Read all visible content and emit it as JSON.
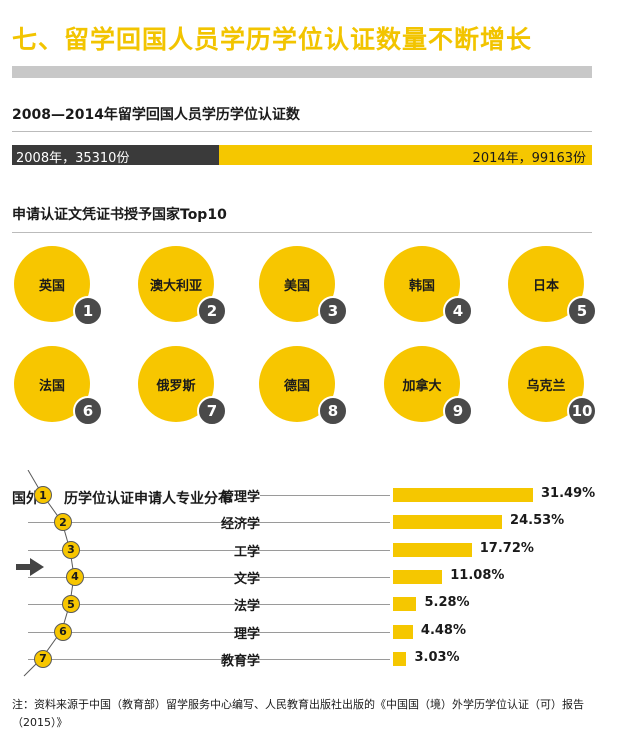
{
  "page": {
    "title": "七、留学回国人员学历学位认证数量不断增长"
  },
  "growth": {
    "heading": "2008—2014年留学回国人员学历学位认证数",
    "start_label": "2008年，35310份",
    "end_label": "2014年，99163份",
    "start_value": 35310,
    "end_value": 99163,
    "colors": {
      "start": "#3a3a3a",
      "end": "#f5c700"
    }
  },
  "countries": {
    "heading": "申请认证文凭证书授予国家Top10",
    "items": [
      {
        "rank": "1",
        "name": "英国"
      },
      {
        "rank": "2",
        "name": "澳大利亚"
      },
      {
        "rank": "3",
        "name": "美国"
      },
      {
        "rank": "4",
        "name": "韩国"
      },
      {
        "rank": "5",
        "name": "日本"
      },
      {
        "rank": "6",
        "name": "法国"
      },
      {
        "rank": "7",
        "name": "俄罗斯"
      },
      {
        "rank": "8",
        "name": "德国"
      },
      {
        "rank": "9",
        "name": "加拿大"
      },
      {
        "rank": "10",
        "name": "乌克兰"
      }
    ]
  },
  "majors": {
    "heading_prefix": "国外",
    "heading_suffix": "历学位认证申请人专业分布"
  },
  "chart_data": {
    "type": "bar",
    "categories": [
      "管理学",
      "经济学",
      "工学",
      "文学",
      "法学",
      "理学",
      "教育学"
    ],
    "ranks": [
      "1",
      "2",
      "3",
      "4",
      "5",
      "6",
      "7"
    ],
    "values": [
      31.49,
      24.53,
      17.72,
      11.08,
      5.28,
      4.48,
      3.03
    ],
    "value_labels": [
      "31.49%",
      "24.53%",
      "17.72%",
      "11.08%",
      "5.28%",
      "4.48%",
      "3.03%"
    ],
    "unit": "%",
    "bar_color": "#f5c700",
    "xlabel": "",
    "ylabel": ""
  },
  "footer": {
    "note": "注：资料来源于中国（教育部）留学服务中心编写、人民教育出版社出版的《中国国（境）外学历学位认证（可）报告（2015）》"
  }
}
